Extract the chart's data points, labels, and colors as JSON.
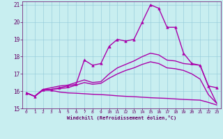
{
  "title": "",
  "xlabel": "Windchill (Refroidissement éolien,°C)",
  "ylabel": "",
  "background_color": "#c8eef0",
  "line_color": "#aa00aa",
  "xlim": [
    -0.5,
    23.5
  ],
  "ylim": [
    15,
    21.2
  ],
  "xticks": [
    0,
    1,
    2,
    3,
    4,
    5,
    6,
    7,
    8,
    9,
    10,
    11,
    12,
    13,
    14,
    15,
    16,
    17,
    18,
    19,
    20,
    21,
    22,
    23
  ],
  "yticks": [
    15,
    16,
    17,
    18,
    19,
    20,
    21
  ],
  "lines": [
    {
      "x": [
        0,
        1,
        2,
        3,
        4,
        5,
        6,
        7,
        8,
        9,
        10,
        11,
        12,
        13,
        14,
        15,
        16,
        17,
        18,
        19,
        20,
        21,
        22,
        23
      ],
      "y": [
        15.9,
        15.7,
        16.1,
        16.1,
        16.2,
        16.3,
        16.4,
        17.8,
        17.5,
        17.6,
        18.6,
        19.0,
        18.9,
        19.0,
        20.0,
        21.0,
        20.8,
        19.7,
        19.7,
        18.2,
        17.6,
        17.5,
        16.3,
        16.2
      ],
      "marker": true,
      "linewidth": 1.0
    },
    {
      "x": [
        0,
        1,
        2,
        3,
        4,
        5,
        6,
        7,
        8,
        9,
        10,
        11,
        12,
        13,
        14,
        15,
        16,
        17,
        18,
        19,
        20,
        21,
        22,
        23
      ],
      "y": [
        15.9,
        15.7,
        16.1,
        16.2,
        16.3,
        16.35,
        16.5,
        16.65,
        16.5,
        16.55,
        17.0,
        17.35,
        17.55,
        17.75,
        18.0,
        18.2,
        18.1,
        17.8,
        17.75,
        17.6,
        17.55,
        17.5,
        16.3,
        15.3
      ],
      "marker": false,
      "linewidth": 1.0
    },
    {
      "x": [
        0,
        1,
        2,
        3,
        4,
        5,
        6,
        7,
        8,
        9,
        10,
        11,
        12,
        13,
        14,
        15,
        16,
        17,
        18,
        19,
        20,
        21,
        22,
        23
      ],
      "y": [
        15.9,
        15.7,
        16.1,
        16.1,
        16.15,
        16.2,
        16.35,
        16.5,
        16.4,
        16.45,
        16.75,
        17.0,
        17.2,
        17.35,
        17.55,
        17.7,
        17.6,
        17.35,
        17.3,
        17.2,
        17.0,
        16.7,
        15.8,
        15.3
      ],
      "marker": false,
      "linewidth": 1.0
    },
    {
      "x": [
        0,
        1,
        2,
        3,
        4,
        5,
        6,
        7,
        8,
        9,
        10,
        11,
        12,
        13,
        14,
        15,
        16,
        17,
        18,
        19,
        20,
        21,
        22,
        23
      ],
      "y": [
        15.9,
        15.7,
        16.05,
        16.05,
        15.95,
        15.9,
        15.88,
        15.85,
        15.82,
        15.8,
        15.77,
        15.73,
        15.7,
        15.68,
        15.65,
        15.62,
        15.6,
        15.58,
        15.55,
        15.52,
        15.5,
        15.48,
        15.35,
        15.2
      ],
      "marker": false,
      "linewidth": 1.0
    }
  ]
}
